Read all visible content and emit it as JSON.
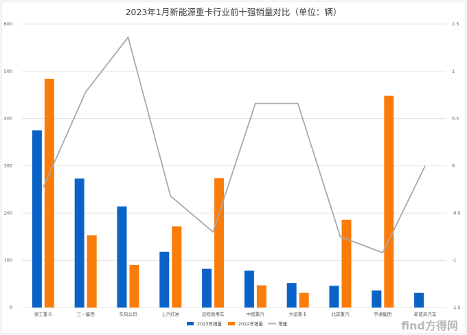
{
  "colors": {
    "series_2023": "#0a64c8",
    "series_2022": "#fa7c0a",
    "growth": "#a9a9a9",
    "grid": "#dcdcdc"
  },
  "watermark": "find方得网",
  "chart_data": {
    "type": "bar",
    "title": "2023年1月新能源重卡行业前十强销量对比（单位：辆）",
    "categories": [
      "徐工重卡",
      "三一集团",
      "东风公司",
      "上汽红岩",
      "远程商用车",
      "中国重汽",
      "大运重卡",
      "北奔重汽",
      "宇通集团",
      "新楚风汽车"
    ],
    "series": [
      {
        "name": "2023年销量",
        "type": "bar",
        "axis": "left",
        "values": [
          375,
          273,
          214,
          118,
          82,
          78,
          52,
          46,
          36,
          31
        ]
      },
      {
        "name": "2022年销量",
        "type": "bar",
        "axis": "left",
        "values": [
          484,
          153,
          90,
          172,
          274,
          47,
          31,
          186,
          448,
          0
        ]
      },
      {
        "name": "增速",
        "type": "line",
        "axis": "right",
        "values": [
          -0.23,
          0.78,
          1.36,
          -0.32,
          -0.7,
          0.66,
          0.66,
          -0.75,
          -0.92,
          0
        ]
      }
    ],
    "y_left": {
      "min": 0,
      "max": 600,
      "ticks": [
        "0",
        "100",
        "200",
        "300",
        "400",
        "500",
        "600"
      ]
    },
    "y_right": {
      "min": -1.5,
      "max": 1.5,
      "ticks": [
        "-1.5",
        "-1",
        "-0.5",
        "0",
        "0.5",
        "1",
        "1.5"
      ]
    },
    "grid": true,
    "legend_position": "bottom"
  }
}
